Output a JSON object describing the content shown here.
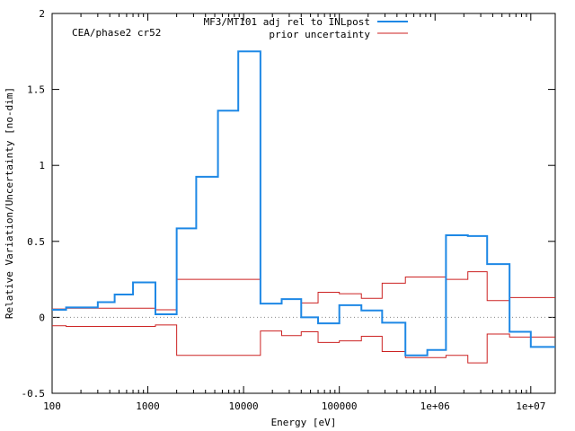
{
  "chart_data": {
    "type": "line",
    "step": true,
    "x_scale": "log",
    "xlim": [
      100,
      18000000
    ],
    "ylim": [
      -0.5,
      2
    ],
    "xlabel": "Energy [eV]",
    "ylabel": "Relative Variation/Uncertainty [no-dim]",
    "annotation": "CEA/phase2 cr52",
    "x_ticks": [
      {
        "value": 100,
        "label": "100"
      },
      {
        "value": 1000,
        "label": "1000"
      },
      {
        "value": 10000,
        "label": "10000"
      },
      {
        "value": 100000,
        "label": "100000"
      },
      {
        "value": 1000000,
        "label": "1e+06"
      },
      {
        "value": 10000000,
        "label": "1e+07"
      }
    ],
    "y_ticks": [
      {
        "value": -0.5,
        "label": "-0.5"
      },
      {
        "value": 0,
        "label": "0"
      },
      {
        "value": 0.5,
        "label": "0.5"
      },
      {
        "value": 1,
        "label": "1"
      },
      {
        "value": 1.5,
        "label": "1.5"
      },
      {
        "value": 2,
        "label": "2"
      }
    ],
    "bin_edges": [
      100,
      140,
      300,
      450,
      700,
      1200,
      2000,
      3200,
      5400,
      8800,
      15000,
      25000,
      40000,
      60000,
      100000,
      170000,
      280000,
      490000,
      830000,
      1300000,
      2200000,
      3500000,
      6000000,
      10000000,
      18000000
    ],
    "series": [
      {
        "name": "MF3/MT101 adj rel to INLpost",
        "color": "#1e88e5",
        "width": 2,
        "values": [
          0.05,
          0.065,
          0.1,
          0.15,
          0.23,
          0.02,
          0.585,
          0.925,
          1.36,
          1.75,
          0.09,
          0.12,
          0.0,
          -0.04,
          0.08,
          0.045,
          -0.035,
          -0.25,
          -0.215,
          0.54,
          0.535,
          0.35,
          -0.095,
          -0.195
        ]
      },
      {
        "name": "prior uncertainty",
        "color": "#cc2222",
        "width": 1,
        "symmetric": true,
        "values": [
          0.055,
          0.06,
          0.06,
          0.06,
          0.06,
          0.05,
          0.25,
          0.25,
          0.25,
          0.25,
          0.09,
          0.12,
          0.095,
          0.165,
          0.155,
          0.125,
          0.225,
          0.265,
          0.265,
          0.25,
          0.3,
          0.11,
          0.13,
          0.13
        ]
      }
    ],
    "zero_line": true,
    "legend_position": "top-right"
  }
}
